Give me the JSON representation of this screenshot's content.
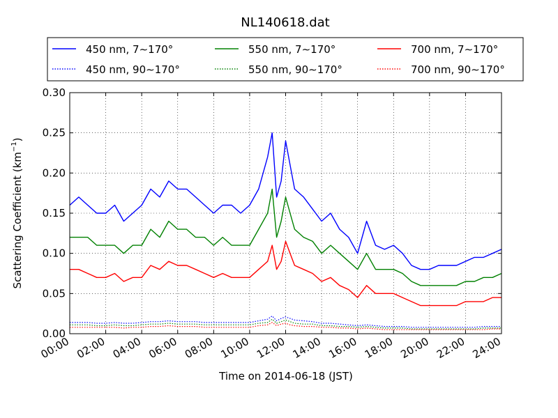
{
  "chart_data": {
    "type": "line",
    "title": "NL140618.dat",
    "xlabel": "Time on 2014-06-18 (JST)",
    "ylabel": "Scattering Coefficient (km",
    "ylabel_sup": "−1",
    "ylabel_end": ")",
    "xlim": [
      "00:00",
      "24:00"
    ],
    "ylim": [
      0.0,
      0.3
    ],
    "grid": true,
    "legend_position": "top, above plot, 3 columns",
    "x_ticks": [
      "00:00",
      "02:00",
      "04:00",
      "06:00",
      "08:00",
      "10:00",
      "12:00",
      "14:00",
      "16:00",
      "18:00",
      "20:00",
      "22:00",
      "24:00"
    ],
    "y_ticks": [
      "0.00",
      "0.05",
      "0.10",
      "0.15",
      "0.20",
      "0.25",
      "0.30"
    ],
    "x_hours": [
      0,
      0.5,
      1,
      1.5,
      2,
      2.5,
      3,
      3.5,
      4,
      4.5,
      5,
      5.5,
      6,
      6.5,
      7,
      7.5,
      8,
      8.5,
      9,
      9.5,
      10,
      10.5,
      11,
      11.25,
      11.5,
      11.75,
      12,
      12.25,
      12.5,
      13,
      13.5,
      14,
      14.5,
      15,
      15.5,
      16,
      16.5,
      17,
      17.5,
      18,
      18.5,
      19,
      19.5,
      20,
      20.5,
      21,
      21.5,
      22,
      22.5,
      23,
      23.5,
      24
    ],
    "series": [
      {
        "name": "450 nm, 7∼170°",
        "color": "#0000ff",
        "style": "solid",
        "values": [
          0.16,
          0.17,
          0.16,
          0.15,
          0.15,
          0.16,
          0.14,
          0.15,
          0.16,
          0.18,
          0.17,
          0.19,
          0.18,
          0.18,
          0.17,
          0.16,
          0.15,
          0.16,
          0.16,
          0.15,
          0.16,
          0.18,
          0.22,
          0.25,
          0.17,
          0.19,
          0.24,
          0.21,
          0.18,
          0.17,
          0.155,
          0.14,
          0.15,
          0.13,
          0.12,
          0.1,
          0.14,
          0.11,
          0.105,
          0.11,
          0.1,
          0.085,
          0.08,
          0.08,
          0.085,
          0.085,
          0.085,
          0.09,
          0.095,
          0.095,
          0.1,
          0.105
        ]
      },
      {
        "name": "550 nm, 7∼170°",
        "color": "#008000",
        "style": "solid",
        "values": [
          0.12,
          0.12,
          0.12,
          0.11,
          0.11,
          0.11,
          0.1,
          0.11,
          0.11,
          0.13,
          0.12,
          0.14,
          0.13,
          0.13,
          0.12,
          0.12,
          0.11,
          0.12,
          0.11,
          0.11,
          0.11,
          0.13,
          0.15,
          0.18,
          0.12,
          0.14,
          0.17,
          0.15,
          0.13,
          0.12,
          0.115,
          0.1,
          0.11,
          0.1,
          0.09,
          0.08,
          0.1,
          0.08,
          0.08,
          0.08,
          0.075,
          0.065,
          0.06,
          0.06,
          0.06,
          0.06,
          0.06,
          0.065,
          0.065,
          0.07,
          0.07,
          0.075
        ]
      },
      {
        "name": "700 nm, 7∼170°",
        "color": "#ff0000",
        "style": "solid",
        "values": [
          0.08,
          0.08,
          0.075,
          0.07,
          0.07,
          0.075,
          0.065,
          0.07,
          0.07,
          0.085,
          0.08,
          0.09,
          0.085,
          0.085,
          0.08,
          0.075,
          0.07,
          0.075,
          0.07,
          0.07,
          0.07,
          0.08,
          0.09,
          0.11,
          0.08,
          0.09,
          0.115,
          0.1,
          0.085,
          0.08,
          0.075,
          0.065,
          0.07,
          0.06,
          0.055,
          0.045,
          0.06,
          0.05,
          0.05,
          0.05,
          0.045,
          0.04,
          0.035,
          0.035,
          0.035,
          0.035,
          0.035,
          0.04,
          0.04,
          0.04,
          0.045,
          0.045
        ]
      },
      {
        "name": "450 nm, 90∼170°",
        "color": "#0000ff",
        "style": "dotted",
        "values": [
          0.014,
          0.014,
          0.014,
          0.013,
          0.013,
          0.014,
          0.013,
          0.013,
          0.014,
          0.015,
          0.015,
          0.016,
          0.015,
          0.015,
          0.015,
          0.014,
          0.014,
          0.014,
          0.014,
          0.014,
          0.014,
          0.016,
          0.018,
          0.022,
          0.016,
          0.019,
          0.021,
          0.019,
          0.017,
          0.016,
          0.015,
          0.013,
          0.013,
          0.012,
          0.011,
          0.01,
          0.011,
          0.01,
          0.009,
          0.009,
          0.009,
          0.008,
          0.008,
          0.008,
          0.008,
          0.008,
          0.008,
          0.008,
          0.008,
          0.009,
          0.009,
          0.009
        ]
      },
      {
        "name": "550 nm, 90∼170°",
        "color": "#008000",
        "style": "dotted",
        "values": [
          0.011,
          0.011,
          0.011,
          0.01,
          0.01,
          0.011,
          0.01,
          0.01,
          0.011,
          0.012,
          0.012,
          0.013,
          0.012,
          0.012,
          0.012,
          0.011,
          0.011,
          0.011,
          0.011,
          0.011,
          0.011,
          0.013,
          0.014,
          0.018,
          0.013,
          0.015,
          0.017,
          0.015,
          0.013,
          0.012,
          0.012,
          0.01,
          0.01,
          0.009,
          0.009,
          0.008,
          0.009,
          0.008,
          0.007,
          0.007,
          0.007,
          0.006,
          0.006,
          0.006,
          0.006,
          0.006,
          0.006,
          0.006,
          0.006,
          0.007,
          0.007,
          0.007
        ]
      },
      {
        "name": "700 nm, 90∼170°",
        "color": "#ff0000",
        "style": "dotted",
        "values": [
          0.008,
          0.008,
          0.008,
          0.008,
          0.008,
          0.008,
          0.007,
          0.008,
          0.008,
          0.009,
          0.009,
          0.01,
          0.009,
          0.009,
          0.009,
          0.008,
          0.008,
          0.008,
          0.008,
          0.008,
          0.008,
          0.01,
          0.011,
          0.014,
          0.01,
          0.012,
          0.013,
          0.011,
          0.01,
          0.009,
          0.009,
          0.008,
          0.008,
          0.007,
          0.007,
          0.006,
          0.007,
          0.006,
          0.005,
          0.005,
          0.005,
          0.005,
          0.005,
          0.005,
          0.005,
          0.005,
          0.005,
          0.005,
          0.005,
          0.005,
          0.006,
          0.006
        ]
      }
    ]
  }
}
